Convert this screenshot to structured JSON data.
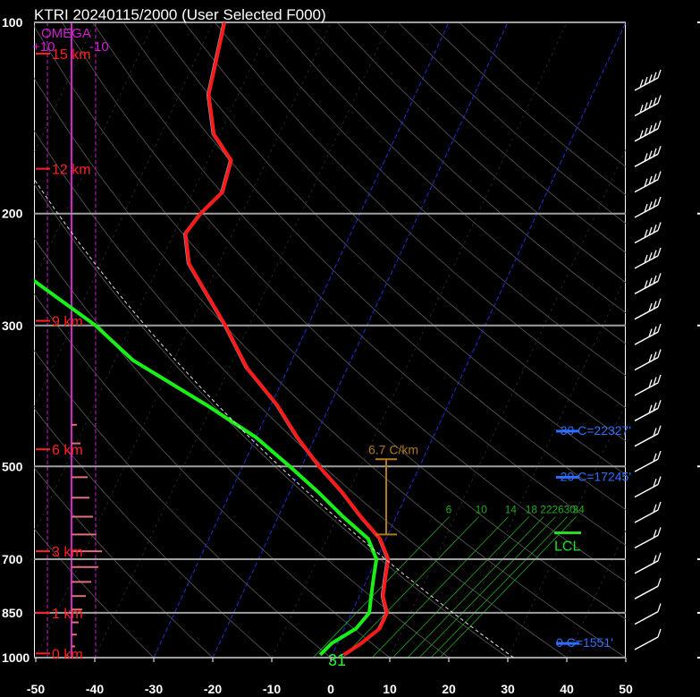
{
  "title": "KTRI   20240115/2000  (User Selected F000)",
  "chart_data": {
    "type": "skew-t",
    "pressure_levels": [
      100,
      200,
      300,
      500,
      700,
      850,
      1000
    ],
    "temperature_ticks": [
      -50,
      -40,
      -30,
      -20,
      -10,
      0,
      10,
      20,
      30,
      40,
      50
    ],
    "xlim": [
      -50,
      52
    ],
    "ylim": [
      1000,
      100
    ],
    "height_labels": [
      "15 km",
      "12 km",
      "9 km",
      "6 km",
      "3 km",
      "1 km",
      "0 km"
    ],
    "height_label_pressure": [
      112,
      170,
      295,
      470,
      680,
      850,
      985
    ],
    "temperature_profile": [
      {
        "p": 100,
        "t": -68
      },
      {
        "p": 130,
        "t": -65
      },
      {
        "p": 150,
        "t": -61
      },
      {
        "p": 165,
        "t": -56
      },
      {
        "p": 185,
        "t": -55
      },
      {
        "p": 200,
        "t": -57
      },
      {
        "p": 215,
        "t": -58
      },
      {
        "p": 240,
        "t": -55
      },
      {
        "p": 300,
        "t": -44
      },
      {
        "p": 350,
        "t": -37
      },
      {
        "p": 400,
        "t": -29
      },
      {
        "p": 450,
        "t": -23
      },
      {
        "p": 500,
        "t": -17
      },
      {
        "p": 550,
        "t": -11
      },
      {
        "p": 600,
        "t": -6
      },
      {
        "p": 650,
        "t": -1
      },
      {
        "p": 700,
        "t": 2
      },
      {
        "p": 750,
        "t": 3
      },
      {
        "p": 800,
        "t": 4
      },
      {
        "p": 850,
        "t": 6
      },
      {
        "p": 900,
        "t": 6
      },
      {
        "p": 950,
        "t": 4
      },
      {
        "p": 990,
        "t": 2
      }
    ],
    "dewpoint_profile": [
      {
        "p": 165,
        "t": -90
      },
      {
        "p": 180,
        "t": -94
      },
      {
        "p": 200,
        "t": -89
      },
      {
        "p": 215,
        "t": -86
      },
      {
        "p": 240,
        "t": -84
      },
      {
        "p": 255,
        "t": -80
      },
      {
        "p": 300,
        "t": -66
      },
      {
        "p": 340,
        "t": -57
      },
      {
        "p": 400,
        "t": -41
      },
      {
        "p": 450,
        "t": -30
      },
      {
        "p": 500,
        "t": -22
      },
      {
        "p": 550,
        "t": -15
      },
      {
        "p": 600,
        "t": -9
      },
      {
        "p": 650,
        "t": -3
      },
      {
        "p": 700,
        "t": 0
      },
      {
        "p": 750,
        "t": 1
      },
      {
        "p": 800,
        "t": 2
      },
      {
        "p": 850,
        "t": 3
      },
      {
        "p": 900,
        "t": 2
      },
      {
        "p": 950,
        "t": -1
      },
      {
        "p": 990,
        "t": -2
      }
    ],
    "omega_label": "OMEGA",
    "omega_ticks": [
      "+10",
      "-10"
    ],
    "lapse_rate_label": "6.7 C/km",
    "mixing_ratio_labels": [
      "6",
      "10",
      "14",
      "18",
      "22",
      "26",
      "30",
      "34"
    ],
    "levels": [
      {
        "label": "-30 C=22327'",
        "p": 440
      },
      {
        "label": "-20 C=17245'",
        "p": 520
      },
      {
        "label": "0 C=1551'",
        "p": 950
      }
    ],
    "lcl_label": "LCL",
    "surface_temp_label": "31",
    "wind_barb_count": 23
  },
  "colors": {
    "temperature": "#ff1a1a",
    "dewpoint": "#18f018",
    "height": "#ff2020",
    "omega": "#d020d0",
    "isobar": "#a0a0a0",
    "isotherm_key": "#2030d0",
    "mixing_ratio": "#1fa81f",
    "lapse": "#b07a1a",
    "level_text": "#2f6fff",
    "lcl": "#22dd22",
    "barb": "#ffffff"
  }
}
